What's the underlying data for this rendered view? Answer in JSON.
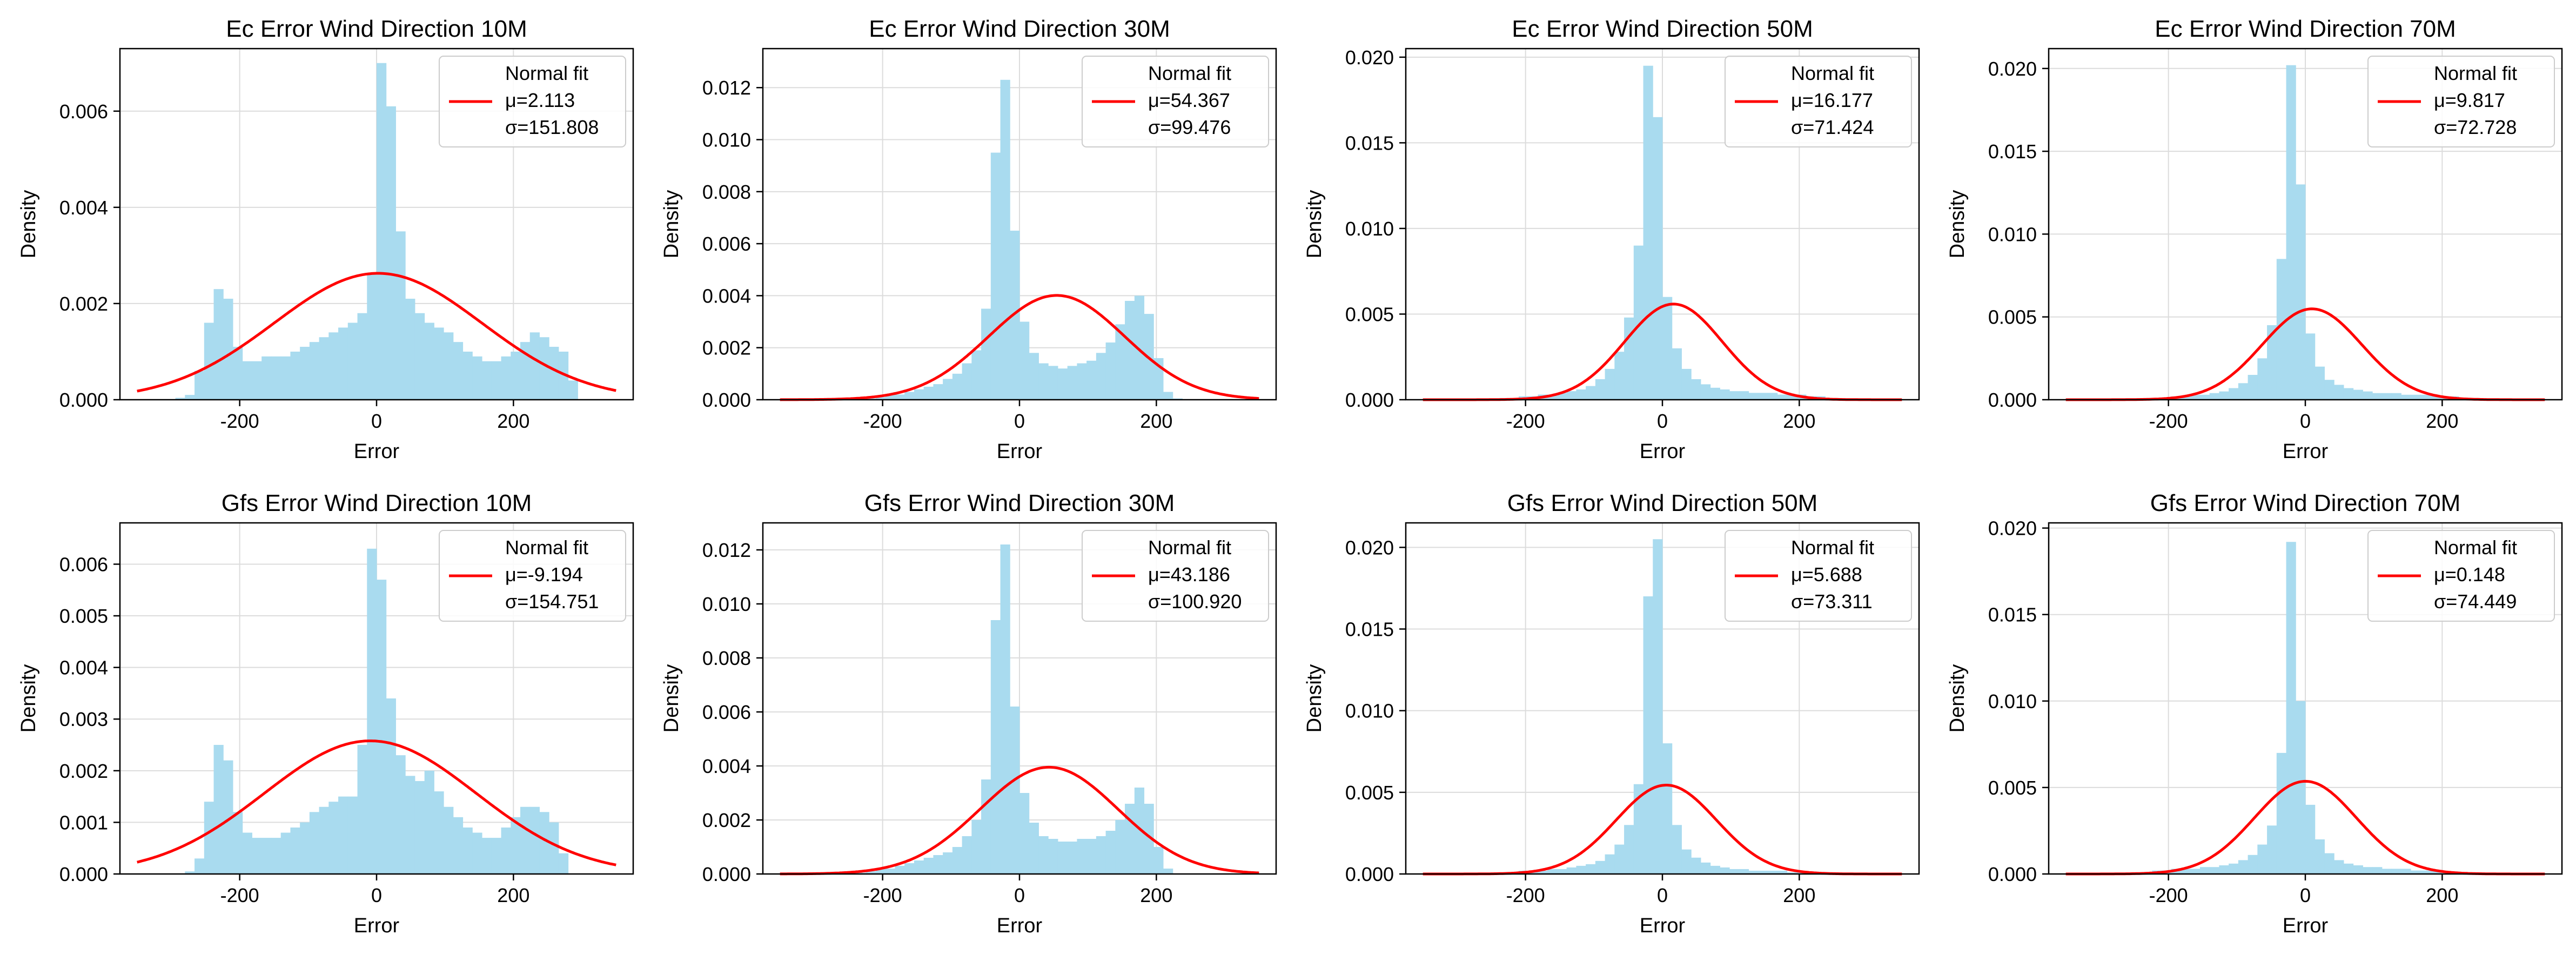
{
  "figure": {
    "background": "#ffffff",
    "hist_color": "#a9dbef",
    "fit_color": "#ff0000",
    "grid_color": "#dcdcdc"
  },
  "chart_data": [
    {
      "type": "bar",
      "title": "Ec Error Wind Direction 10M",
      "xlabel": "Error",
      "ylabel": "Density",
      "xlim": [
        -375,
        375
      ],
      "ylim": [
        0,
        0.0073
      ],
      "xticks": [
        {
          "value": -200,
          "label": "-200"
        },
        {
          "value": 0,
          "label": "0"
        },
        {
          "value": 200,
          "label": "200"
        }
      ],
      "yticks": [
        {
          "value": 0,
          "label": "0.000"
        },
        {
          "value": 0.002,
          "label": "0.002"
        },
        {
          "value": 0.004,
          "label": "0.004"
        },
        {
          "value": 0.006,
          "label": "0.006"
        }
      ],
      "grid": true,
      "legend": {
        "position": "top-right",
        "label": "Normal fit",
        "lines": [
          "μ=2.113",
          "σ=151.808"
        ]
      },
      "fit": {
        "mu": 2.113,
        "sigma": 151.808,
        "x_range": [
          -350,
          350
        ]
      },
      "histogram": {
        "range": [
          -350,
          350
        ],
        "bins": 50,
        "values": [
          0,
          0,
          0,
          0,
          4e-05,
          0.0001,
          0.0006,
          0.0016,
          0.0023,
          0.0021,
          0.0011,
          0.0008,
          0.0008,
          0.0009,
          0.0009,
          0.0009,
          0.001,
          0.0011,
          0.0012,
          0.0013,
          0.0014,
          0.0015,
          0.0016,
          0.0018,
          0.0026,
          0.007,
          0.0061,
          0.0035,
          0.0021,
          0.0018,
          0.0016,
          0.0015,
          0.0014,
          0.0012,
          0.001,
          0.0009,
          0.0008,
          0.0008,
          0.0009,
          0.001,
          0.0012,
          0.0014,
          0.0013,
          0.0011,
          0.001,
          0.0004,
          0,
          0,
          0,
          0
        ]
      }
    },
    {
      "type": "bar",
      "title": "Ec Error Wind Direction 30M",
      "xlabel": "Error",
      "ylabel": "Density",
      "xlim": [
        -375,
        375
      ],
      "ylim": [
        0,
        0.0135
      ],
      "xticks": [
        {
          "value": -200,
          "label": "-200"
        },
        {
          "value": 0,
          "label": "0"
        },
        {
          "value": 200,
          "label": "200"
        }
      ],
      "yticks": [
        {
          "value": 0,
          "label": "0.000"
        },
        {
          "value": 0.002,
          "label": "0.002"
        },
        {
          "value": 0.004,
          "label": "0.004"
        },
        {
          "value": 0.006,
          "label": "0.006"
        },
        {
          "value": 0.008,
          "label": "0.008"
        },
        {
          "value": 0.01,
          "label": "0.010"
        },
        {
          "value": 0.012,
          "label": "0.012"
        }
      ],
      "grid": true,
      "legend": {
        "position": "top-right",
        "label": "Normal fit",
        "lines": [
          "μ=54.367",
          "σ=99.476"
        ]
      },
      "fit": {
        "mu": 54.367,
        "sigma": 99.476,
        "x_range": [
          -350,
          350
        ]
      },
      "histogram": {
        "range": [
          -350,
          350
        ],
        "bins": 50,
        "values": [
          0,
          0,
          0,
          0,
          0,
          0,
          0,
          0,
          0,
          5e-05,
          0.0001,
          0.0002,
          0.0002,
          0.0003,
          0.0004,
          0.0005,
          0.0006,
          0.0008,
          0.001,
          0.0014,
          0.0019,
          0.0035,
          0.0095,
          0.0123,
          0.0065,
          0.003,
          0.0018,
          0.0014,
          0.0013,
          0.0012,
          0.0013,
          0.0014,
          0.0015,
          0.0018,
          0.0022,
          0.0029,
          0.0038,
          0.004,
          0.0033,
          0.0016,
          0.0003,
          5e-05,
          0,
          0,
          0,
          0,
          0,
          0,
          0,
          0
        ]
      }
    },
    {
      "type": "bar",
      "title": "Ec Error Wind Direction 50M",
      "xlabel": "Error",
      "ylabel": "Density",
      "xlim": [
        -375,
        375
      ],
      "ylim": [
        0,
        0.0205
      ],
      "xticks": [
        {
          "value": -200,
          "label": "-200"
        },
        {
          "value": 0,
          "label": "0"
        },
        {
          "value": 200,
          "label": "200"
        }
      ],
      "yticks": [
        {
          "value": 0,
          "label": "0.000"
        },
        {
          "value": 0.005,
          "label": "0.005"
        },
        {
          "value": 0.01,
          "label": "0.010"
        },
        {
          "value": 0.015,
          "label": "0.015"
        },
        {
          "value": 0.02,
          "label": "0.020"
        }
      ],
      "grid": true,
      "legend": {
        "position": "top-right",
        "label": "Normal fit",
        "lines": [
          "μ=16.177",
          "σ=71.424"
        ]
      },
      "fit": {
        "mu": 16.177,
        "sigma": 71.424,
        "x_range": [
          -350,
          350
        ]
      },
      "histogram": {
        "range": [
          -350,
          350
        ],
        "bins": 50,
        "values": [
          0,
          0,
          0,
          0,
          0,
          0,
          0,
          5e-05,
          0.0001,
          0.0001,
          0.0002,
          0.0002,
          0.0003,
          0.0003,
          0.0004,
          0.0005,
          0.0006,
          0.0008,
          0.0012,
          0.0018,
          0.0028,
          0.0048,
          0.009,
          0.0195,
          0.0165,
          0.006,
          0.003,
          0.0018,
          0.0012,
          0.0009,
          0.0007,
          0.0006,
          0.0005,
          0.0005,
          0.0004,
          0.0004,
          0.0004,
          0.0003,
          0.0003,
          0.0003,
          0.0002,
          0.0002,
          0.0001,
          5e-05,
          0,
          0,
          0,
          0,
          0,
          0
        ]
      }
    },
    {
      "type": "bar",
      "title": "Ec Error Wind Direction 70M",
      "xlabel": "Error",
      "ylabel": "Density",
      "xlim": [
        -375,
        375
      ],
      "ylim": [
        0,
        0.0212
      ],
      "xticks": [
        {
          "value": -200,
          "label": "-200"
        },
        {
          "value": 0,
          "label": "0"
        },
        {
          "value": 200,
          "label": "200"
        }
      ],
      "yticks": [
        {
          "value": 0,
          "label": "0.000"
        },
        {
          "value": 0.005,
          "label": "0.005"
        },
        {
          "value": 0.01,
          "label": "0.010"
        },
        {
          "value": 0.015,
          "label": "0.015"
        },
        {
          "value": 0.02,
          "label": "0.020"
        }
      ],
      "grid": true,
      "legend": {
        "position": "top-right",
        "label": "Normal fit",
        "lines": [
          "μ=9.817",
          "σ=72.728"
        ]
      },
      "fit": {
        "mu": 9.817,
        "sigma": 72.728,
        "x_range": [
          -350,
          350
        ]
      },
      "histogram": {
        "range": [
          -350,
          350
        ],
        "bins": 50,
        "values": [
          0,
          0,
          0,
          0,
          0,
          0,
          0,
          0,
          5e-05,
          0.0001,
          0.0001,
          0.0002,
          0.0002,
          0.0003,
          0.0003,
          0.0004,
          0.0005,
          0.0007,
          0.001,
          0.0015,
          0.0025,
          0.0045,
          0.0085,
          0.0202,
          0.013,
          0.004,
          0.002,
          0.0012,
          0.0009,
          0.0007,
          0.0006,
          0.0005,
          0.0004,
          0.0004,
          0.0004,
          0.0003,
          0.0003,
          0.0003,
          0.0003,
          0.0002,
          0.0002,
          0.0001,
          5e-05,
          0,
          0,
          0,
          0,
          0,
          0,
          0
        ]
      }
    },
    {
      "type": "bar",
      "title": "Gfs Error Wind Direction 10M",
      "xlabel": "Error",
      "ylabel": "Density",
      "xlim": [
        -375,
        375
      ],
      "ylim": [
        0,
        0.0068
      ],
      "xticks": [
        {
          "value": -200,
          "label": "-200"
        },
        {
          "value": 0,
          "label": "0"
        },
        {
          "value": 200,
          "label": "200"
        }
      ],
      "yticks": [
        {
          "value": 0,
          "label": "0.000"
        },
        {
          "value": 0.001,
          "label": "0.001"
        },
        {
          "value": 0.002,
          "label": "0.002"
        },
        {
          "value": 0.003,
          "label": "0.003"
        },
        {
          "value": 0.004,
          "label": "0.004"
        },
        {
          "value": 0.005,
          "label": "0.005"
        },
        {
          "value": 0.006,
          "label": "0.006"
        }
      ],
      "grid": true,
      "legend": {
        "position": "top-right",
        "label": "Normal fit",
        "lines": [
          "μ=-9.194",
          "σ=154.751"
        ]
      },
      "fit": {
        "mu": -9.194,
        "sigma": 154.751,
        "x_range": [
          -350,
          350
        ]
      },
      "histogram": {
        "range": [
          -350,
          350
        ],
        "bins": 50,
        "values": [
          0,
          0,
          0,
          0,
          0,
          5e-05,
          0.0003,
          0.0014,
          0.0025,
          0.0022,
          0.0012,
          0.0008,
          0.0007,
          0.0007,
          0.0007,
          0.0008,
          0.0009,
          0.001,
          0.0012,
          0.0013,
          0.0014,
          0.0015,
          0.0015,
          0.0025,
          0.0063,
          0.0057,
          0.0034,
          0.0023,
          0.0019,
          0.0018,
          0.002,
          0.0016,
          0.0013,
          0.0011,
          0.0009,
          0.0008,
          0.0007,
          0.0007,
          0.0009,
          0.0011,
          0.0013,
          0.0013,
          0.0012,
          0.001,
          0.0004,
          0,
          0,
          0,
          0,
          0
        ]
      }
    },
    {
      "type": "bar",
      "title": "Gfs Error Wind Direction 30M",
      "xlabel": "Error",
      "ylabel": "Density",
      "xlim": [
        -375,
        375
      ],
      "ylim": [
        0,
        0.013
      ],
      "xticks": [
        {
          "value": -200,
          "label": "-200"
        },
        {
          "value": 0,
          "label": "0"
        },
        {
          "value": 200,
          "label": "200"
        }
      ],
      "yticks": [
        {
          "value": 0,
          "label": "0.000"
        },
        {
          "value": 0.002,
          "label": "0.002"
        },
        {
          "value": 0.004,
          "label": "0.004"
        },
        {
          "value": 0.006,
          "label": "0.006"
        },
        {
          "value": 0.008,
          "label": "0.008"
        },
        {
          "value": 0.01,
          "label": "0.010"
        },
        {
          "value": 0.012,
          "label": "0.012"
        }
      ],
      "grid": true,
      "legend": {
        "position": "top-right",
        "label": "Normal fit",
        "lines": [
          "μ=43.186",
          "σ=100.920"
        ]
      },
      "fit": {
        "mu": 43.186,
        "sigma": 100.92,
        "x_range": [
          -350,
          350
        ]
      },
      "histogram": {
        "range": [
          -350,
          350
        ],
        "bins": 50,
        "values": [
          0,
          0,
          0,
          0,
          0,
          0,
          0,
          0,
          5e-05,
          0.0001,
          0.0002,
          0.0002,
          0.0003,
          0.0004,
          0.0005,
          0.0006,
          0.0007,
          0.0008,
          0.001,
          0.0014,
          0.002,
          0.0035,
          0.0094,
          0.0122,
          0.0062,
          0.003,
          0.0019,
          0.0014,
          0.0013,
          0.0012,
          0.0012,
          0.0013,
          0.0013,
          0.0014,
          0.0016,
          0.002,
          0.0026,
          0.0032,
          0.0026,
          0.001,
          0.0002,
          0,
          0,
          0,
          0,
          0,
          0,
          0,
          0,
          0
        ]
      }
    },
    {
      "type": "bar",
      "title": "Gfs Error Wind Direction 50M",
      "xlabel": "Error",
      "ylabel": "Density",
      "xlim": [
        -375,
        375
      ],
      "ylim": [
        0,
        0.0215
      ],
      "xticks": [
        {
          "value": -200,
          "label": "-200"
        },
        {
          "value": 0,
          "label": "0"
        },
        {
          "value": 200,
          "label": "200"
        }
      ],
      "yticks": [
        {
          "value": 0,
          "label": "0.000"
        },
        {
          "value": 0.005,
          "label": "0.005"
        },
        {
          "value": 0.01,
          "label": "0.010"
        },
        {
          "value": 0.015,
          "label": "0.015"
        },
        {
          "value": 0.02,
          "label": "0.020"
        }
      ],
      "grid": true,
      "legend": {
        "position": "top-right",
        "label": "Normal fit",
        "lines": [
          "μ=5.688",
          "σ=73.311"
        ]
      },
      "fit": {
        "mu": 5.688,
        "sigma": 73.311,
        "x_range": [
          -350,
          350
        ]
      },
      "histogram": {
        "range": [
          -350,
          350
        ],
        "bins": 50,
        "values": [
          0,
          0,
          0,
          0,
          0,
          0,
          0,
          5e-05,
          0.0001,
          0.0001,
          0.0002,
          0.0002,
          0.0002,
          0.0003,
          0.0003,
          0.0004,
          0.0005,
          0.0006,
          0.0008,
          0.0012,
          0.0018,
          0.003,
          0.0055,
          0.017,
          0.0205,
          0.008,
          0.003,
          0.0015,
          0.001,
          0.0007,
          0.0005,
          0.0004,
          0.0003,
          0.0003,
          0.0002,
          0.0002,
          0.0002,
          0.0002,
          0.0001,
          0.0001,
          5e-05,
          0,
          0,
          0,
          0,
          0,
          0,
          0,
          0,
          0
        ]
      }
    },
    {
      "type": "bar",
      "title": "Gfs Error Wind Direction 70M",
      "xlabel": "Error",
      "ylabel": "Density",
      "xlim": [
        -375,
        375
      ],
      "ylim": [
        0,
        0.0203
      ],
      "xticks": [
        {
          "value": -200,
          "label": "-200"
        },
        {
          "value": 0,
          "label": "0"
        },
        {
          "value": 200,
          "label": "200"
        }
      ],
      "yticks": [
        {
          "value": 0,
          "label": "0.000"
        },
        {
          "value": 0.005,
          "label": "0.005"
        },
        {
          "value": 0.01,
          "label": "0.010"
        },
        {
          "value": 0.015,
          "label": "0.015"
        },
        {
          "value": 0.02,
          "label": "0.020"
        }
      ],
      "grid": true,
      "legend": {
        "position": "top-right",
        "label": "Normal fit",
        "lines": [
          "μ=0.148",
          "σ=74.449"
        ]
      },
      "fit": {
        "mu": 0.148,
        "sigma": 74.449,
        "x_range": [
          -350,
          350
        ]
      },
      "histogram": {
        "range": [
          -350,
          350
        ],
        "bins": 50,
        "values": [
          0,
          0,
          0,
          0,
          0,
          0,
          0,
          5e-05,
          0.0001,
          0.0002,
          0.0002,
          0.0003,
          0.0003,
          0.0003,
          0.0004,
          0.0004,
          0.0005,
          0.0006,
          0.0008,
          0.0011,
          0.0017,
          0.0028,
          0.007,
          0.0192,
          0.01,
          0.004,
          0.002,
          0.0012,
          0.0008,
          0.0006,
          0.0005,
          0.0004,
          0.0004,
          0.0003,
          0.0003,
          0.0003,
          0.0002,
          0.0002,
          0.0002,
          0.0001,
          0.0001,
          5e-05,
          0,
          0,
          0,
          0,
          0,
          0,
          0,
          0
        ]
      }
    }
  ]
}
